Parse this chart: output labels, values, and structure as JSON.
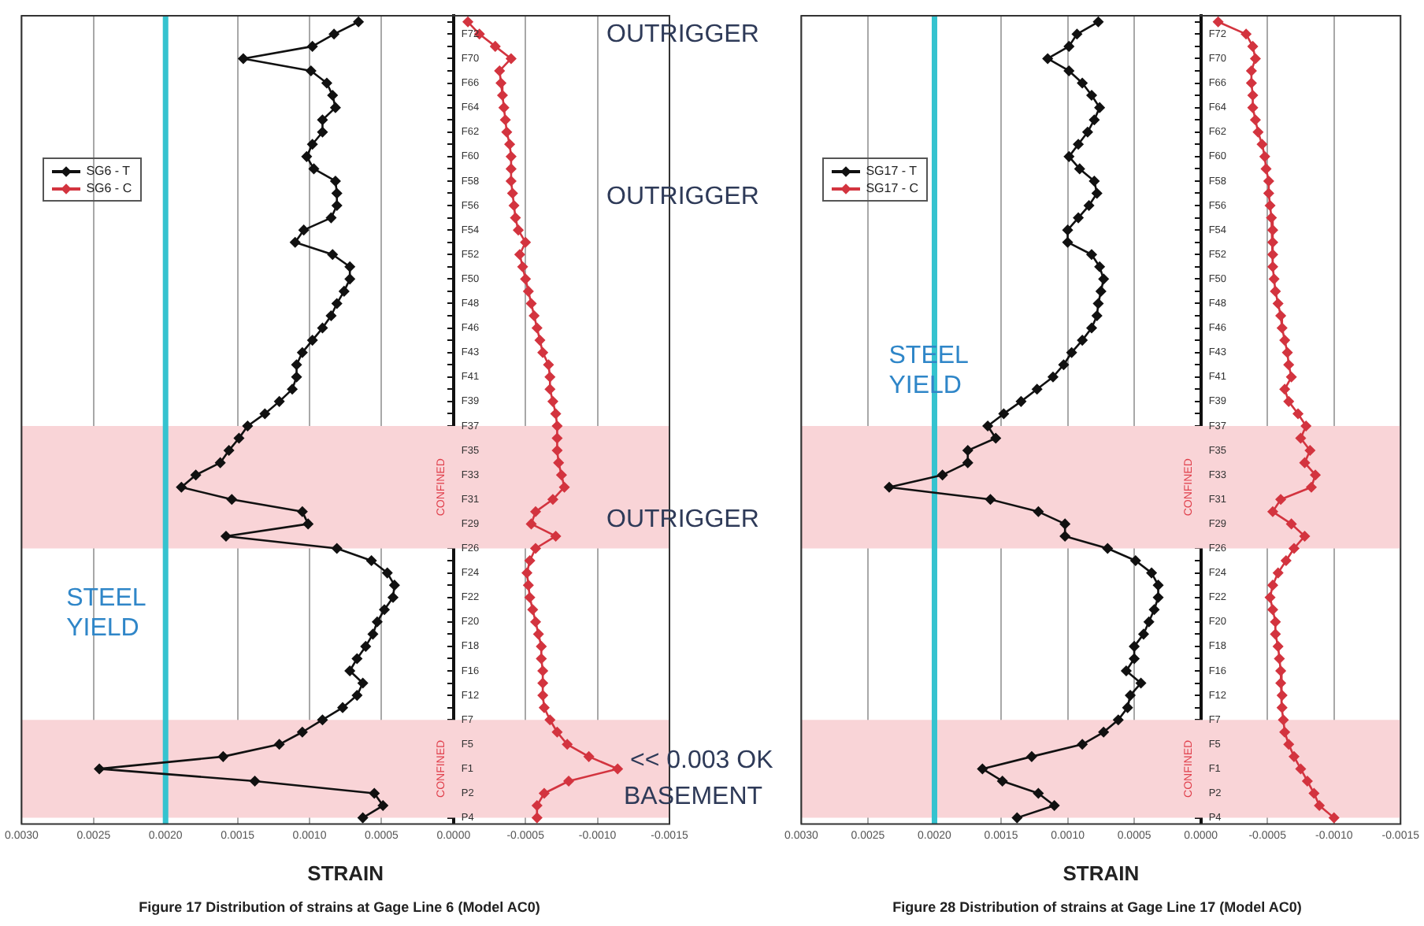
{
  "chart_data": [
    {
      "type": "line",
      "orientation": "horizontal",
      "title": "Figure 17 Distribution of strains at Gage Line 6 (Model AC0)",
      "xlabel": "STRAIN",
      "categories": [
        null,
        "F72",
        null,
        "F70",
        null,
        "F66",
        null,
        "F64",
        null,
        "F62",
        null,
        "F60",
        null,
        "F58",
        null,
        "F56",
        null,
        "F54",
        null,
        "F52",
        null,
        "F50",
        null,
        "F48",
        null,
        "F46",
        null,
        "F43",
        null,
        "F41",
        null,
        "F39",
        null,
        "F37",
        null,
        "F35",
        null,
        "F33",
        null,
        "F31",
        null,
        "F29",
        null,
        "F26",
        null,
        "F24",
        null,
        "F22",
        null,
        "F20",
        null,
        "F18",
        null,
        "F16",
        null,
        "F12",
        null,
        "F7",
        null,
        "F5",
        null,
        "F1",
        null,
        "P2",
        null,
        "P4"
      ],
      "series": [
        {
          "name": "SG6 - T",
          "color": "#111111",
          "values": [
            0.00066,
            0.00083,
            0.00098,
            0.00146,
            0.00099,
            0.00088,
            0.00084,
            0.00082,
            0.00091,
            0.00091,
            0.00098,
            0.00102,
            0.00097,
            0.00082,
            0.00081,
            0.00081,
            0.00085,
            0.00104,
            0.0011,
            0.00084,
            0.00072,
            0.00072,
            0.00076,
            0.00081,
            0.00085,
            0.00091,
            0.00098,
            0.00105,
            0.00109,
            0.00109,
            0.00112,
            0.00121,
            0.00131,
            0.00143,
            0.00149,
            0.00156,
            0.00162,
            0.00179,
            0.00189,
            0.00154,
            0.00105,
            0.00101,
            0.00158,
            0.00081,
            0.00057,
            0.00046,
            0.00041,
            0.00042,
            0.00048,
            0.00053,
            0.00056,
            0.00061,
            0.00067,
            0.00072,
            0.00063,
            0.00067,
            0.00077,
            0.00091,
            0.00105,
            0.00121,
            0.0016,
            0.00246,
            0.00138,
            0.00055,
            0.00049,
            0.00063
          ]
        },
        {
          "name": "SG6 - C",
          "color": "#d3343f",
          "values": [
            -0.0001,
            -0.00018,
            -0.00029,
            -0.0004,
            -0.00032,
            -0.00033,
            -0.00034,
            -0.00035,
            -0.00036,
            -0.00037,
            -0.00039,
            -0.0004,
            -0.0004,
            -0.0004,
            -0.00041,
            -0.00042,
            -0.00043,
            -0.00045,
            -0.0005,
            -0.00046,
            -0.00048,
            -0.0005,
            -0.00052,
            -0.00054,
            -0.00056,
            -0.00058,
            -0.0006,
            -0.00062,
            -0.00066,
            -0.00067,
            -0.00067,
            -0.00069,
            -0.00071,
            -0.00072,
            -0.00072,
            -0.00072,
            -0.00073,
            -0.00075,
            -0.00077,
            -0.00069,
            -0.00057,
            -0.00054,
            -0.00071,
            -0.00057,
            -0.00053,
            -0.00051,
            -0.00052,
            -0.00053,
            -0.00055,
            -0.00057,
            -0.00059,
            -0.00061,
            -0.00061,
            -0.00062,
            -0.00062,
            -0.00062,
            -0.00063,
            -0.00067,
            -0.00072,
            -0.00079,
            -0.00094,
            -0.00114,
            -0.0008,
            -0.00063,
            -0.00058,
            -0.00058
          ]
        }
      ],
      "xlim": [
        0.003,
        -0.0015
      ],
      "xticks": [
        {
          "value": 0.003,
          "label": "0.0030"
        },
        {
          "value": 0.0025,
          "label": "0.0025"
        },
        {
          "value": 0.002,
          "label": "0.0020"
        },
        {
          "value": 0.0015,
          "label": "0.0015"
        },
        {
          "value": 0.001,
          "label": "0.0010"
        },
        {
          "value": 0.0005,
          "label": "0.0005"
        },
        {
          "value": 0,
          "label": "0.0000"
        },
        {
          "value": -0.0005,
          "label": "-0.0005"
        },
        {
          "value": -0.001,
          "label": "-0.0010"
        },
        {
          "value": -0.0015,
          "label": "-0.0015"
        }
      ],
      "grid": "x",
      "legend": "top left",
      "marker": "diamond",
      "bands": [
        {
          "axis": "y",
          "from": "F37",
          "to": "F26",
          "label": "CONFINED",
          "color": "#f9d4d7"
        },
        {
          "axis": "y",
          "from": "F7",
          "to": "P4",
          "label": "CONFINED",
          "color": "#f9d4d7"
        }
      ],
      "ref_lines": [
        {
          "axis": "x",
          "value": 0.002,
          "label": "STEEL\nYIELD",
          "color": "#35c3cf"
        }
      ],
      "annotations": [
        "OUTRIGGER",
        "OUTRIGGER",
        "OUTRIGGER",
        "<< 0.003 OK",
        "BASEMENT"
      ]
    },
    {
      "type": "line",
      "orientation": "horizontal",
      "title": "Figure 28 Distribution of strains at Gage Line 17 (Model AC0)",
      "xlabel": "STRAIN",
      "categories": [
        null,
        "F72",
        null,
        "F70",
        null,
        "F66",
        null,
        "F64",
        null,
        "F62",
        null,
        "F60",
        null,
        "F58",
        null,
        "F56",
        null,
        "F54",
        null,
        "F52",
        null,
        "F50",
        null,
        "F48",
        null,
        "F46",
        null,
        "F43",
        null,
        "F41",
        null,
        "F39",
        null,
        "F37",
        null,
        "F35",
        null,
        "F33",
        null,
        "F31",
        null,
        "F29",
        null,
        "F26",
        null,
        "F24",
        null,
        "F22",
        null,
        "F20",
        null,
        "F18",
        null,
        "F16",
        null,
        "F12",
        null,
        "F7",
        null,
        "F5",
        null,
        "F1",
        null,
        "P2",
        null,
        "P4"
      ],
      "series": [
        {
          "name": "SG17 - T",
          "color": "#111111",
          "values": [
            0.00077,
            0.00093,
            0.00099,
            0.00115,
            0.00099,
            0.00089,
            0.00082,
            0.00076,
            0.0008,
            0.00085,
            0.00092,
            0.00099,
            0.00091,
            0.0008,
            0.00078,
            0.00084,
            0.00092,
            0.001,
            0.001,
            0.00082,
            0.00076,
            0.00073,
            0.00075,
            0.00077,
            0.00078,
            0.00082,
            0.00089,
            0.00097,
            0.00103,
            0.00111,
            0.00123,
            0.00135,
            0.00148,
            0.0016,
            0.00154,
            0.00175,
            0.00175,
            0.00194,
            0.00234,
            0.00158,
            0.00122,
            0.00102,
            0.00102,
            0.0007,
            0.00049,
            0.00037,
            0.00032,
            0.00032,
            0.00035,
            0.00039,
            0.00043,
            0.0005,
            0.0005,
            0.00056,
            0.00045,
            0.00053,
            0.00055,
            0.00062,
            0.00073,
            0.00089,
            0.00127,
            0.00164,
            0.00149,
            0.00122,
            0.0011,
            0.00138
          ]
        },
        {
          "name": "SG17 - C",
          "color": "#d3343f",
          "values": [
            -0.00013,
            -0.00034,
            -0.00039,
            -0.00041,
            -0.00038,
            -0.00038,
            -0.00039,
            -0.00039,
            -0.00041,
            -0.00043,
            -0.00046,
            -0.00048,
            -0.00049,
            -0.00051,
            -0.00051,
            -0.00052,
            -0.00053,
            -0.00054,
            -0.00054,
            -0.00054,
            -0.00054,
            -0.00055,
            -0.00056,
            -0.00058,
            -0.0006,
            -0.00061,
            -0.00063,
            -0.00065,
            -0.00066,
            -0.00068,
            -0.00063,
            -0.00066,
            -0.00073,
            -0.00079,
            -0.00075,
            -0.00082,
            -0.00078,
            -0.00086,
            -0.00083,
            -0.0006,
            -0.00054,
            -0.00068,
            -0.00078,
            -0.0007,
            -0.00064,
            -0.00058,
            -0.00054,
            -0.00052,
            -0.00054,
            -0.00056,
            -0.00056,
            -0.00058,
            -0.00059,
            -0.0006,
            -0.0006,
            -0.00061,
            -0.00061,
            -0.00062,
            -0.00063,
            -0.00066,
            -0.0007,
            -0.00075,
            -0.0008,
            -0.00085,
            -0.00089,
            -0.001
          ]
        }
      ],
      "xlim": [
        0.003,
        -0.0015
      ],
      "xticks": [
        {
          "value": 0.003,
          "label": "0.0030"
        },
        {
          "value": 0.0025,
          "label": "0.0025"
        },
        {
          "value": 0.002,
          "label": "0.0020"
        },
        {
          "value": 0.0015,
          "label": "0.0015"
        },
        {
          "value": 0.001,
          "label": "0.0010"
        },
        {
          "value": 0.0005,
          "label": "0.0005"
        },
        {
          "value": 0,
          "label": "0.0000"
        },
        {
          "value": -0.0005,
          "label": "-0.0005"
        },
        {
          "value": -0.001,
          "label": "-0.0010"
        },
        {
          "value": -0.0015,
          "label": "-0.0015"
        }
      ],
      "grid": "x",
      "legend": "top left",
      "marker": "diamond",
      "bands": [
        {
          "axis": "y",
          "from": "F37",
          "to": "F26",
          "label": "CONFINED",
          "color": "#f9d4d7"
        },
        {
          "axis": "y",
          "from": "F7",
          "to": "P4",
          "label": "CONFINED",
          "color": "#f9d4d7"
        }
      ],
      "ref_lines": [
        {
          "axis": "x",
          "value": 0.002,
          "label": "STEEL\nYIELD",
          "color": "#35c3cf"
        }
      ]
    }
  ]
}
